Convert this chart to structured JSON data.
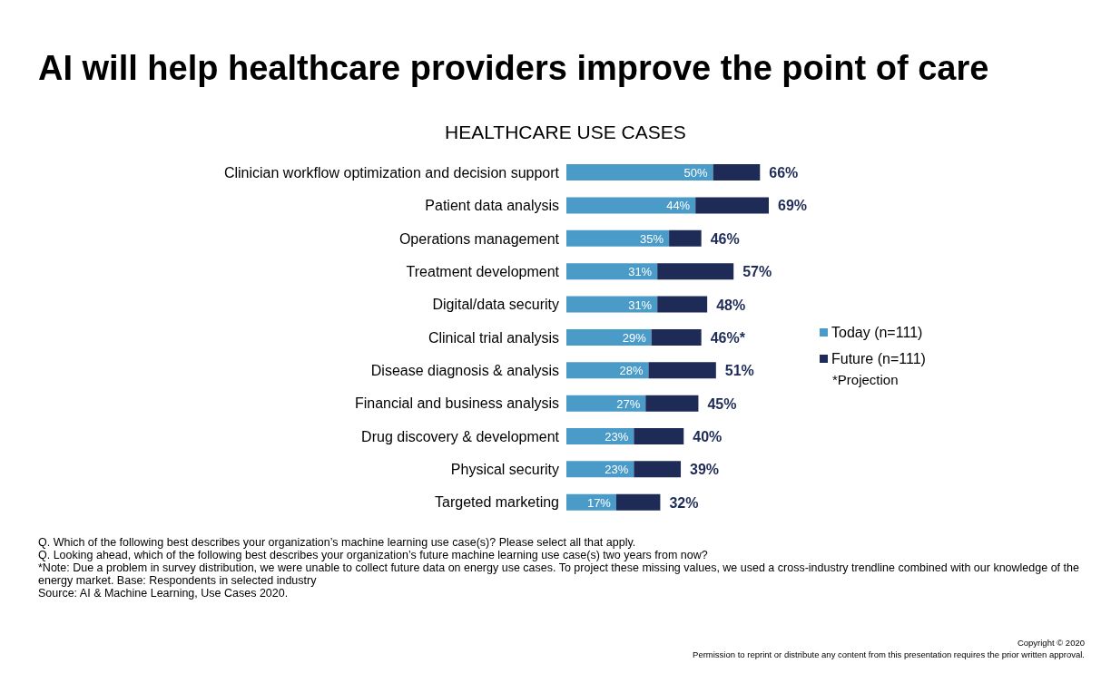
{
  "chart_data": {
    "type": "bar",
    "orientation": "horizontal",
    "stacked": true,
    "title": "AI will help healthcare providers improve the point of care",
    "subtitle": "HEALTHCARE USE CASES",
    "categories": [
      "Clinician workflow optimization and decision support",
      "Patient data analysis",
      "Operations management",
      "Treatment development",
      "Digital/data security",
      "Clinical trial analysis",
      "Disease diagnosis & analysis",
      "Financial and business analysis",
      "Drug discovery & development",
      "Physical security",
      "Targeted marketing"
    ],
    "series": [
      {
        "name": "Today (n=111)",
        "color": "#4a9bc8",
        "values": [
          50,
          44,
          35,
          31,
          31,
          29,
          28,
          27,
          23,
          23,
          17
        ],
        "value_labels": [
          "50%",
          "44%",
          "35%",
          "31%",
          "31%",
          "29%",
          "28%",
          "27%",
          "23%",
          "23%",
          "17%"
        ]
      },
      {
        "name": "Future (n=111)",
        "color": "#1e2b57",
        "values": [
          16,
          25,
          11,
          26,
          17,
          17,
          23,
          18,
          17,
          16,
          15
        ]
      }
    ],
    "totals": [
      "66%",
      "69%",
      "46%",
      "57%",
      "48%",
      "46%*",
      "51%",
      "45%",
      "40%",
      "39%",
      "32%"
    ],
    "tick_labels": "y",
    "grid": false,
    "legend": "right",
    "annotations": [
      "*Projection",
      "Q. Which of the following best describes your organization’s machine learning use case(s)? Please select all that apply.",
      "Q. Looking ahead, which of the following best describes your organization’s future machine learning use case(s) two years from now?",
      "*Note: Due a problem in survey distribution, we were unable to collect future data on energy use cases. To project these missing values, we used a cross-industry trendline combined with our knowledge of the energy market. Base: Respondents in selected industry",
      "Source: AI & Machine Learning, Use Cases 2020.",
      "Copyright © 2020",
      "Permission to reprint or distribute any content from this presentation requires the prior written approval."
    ]
  }
}
